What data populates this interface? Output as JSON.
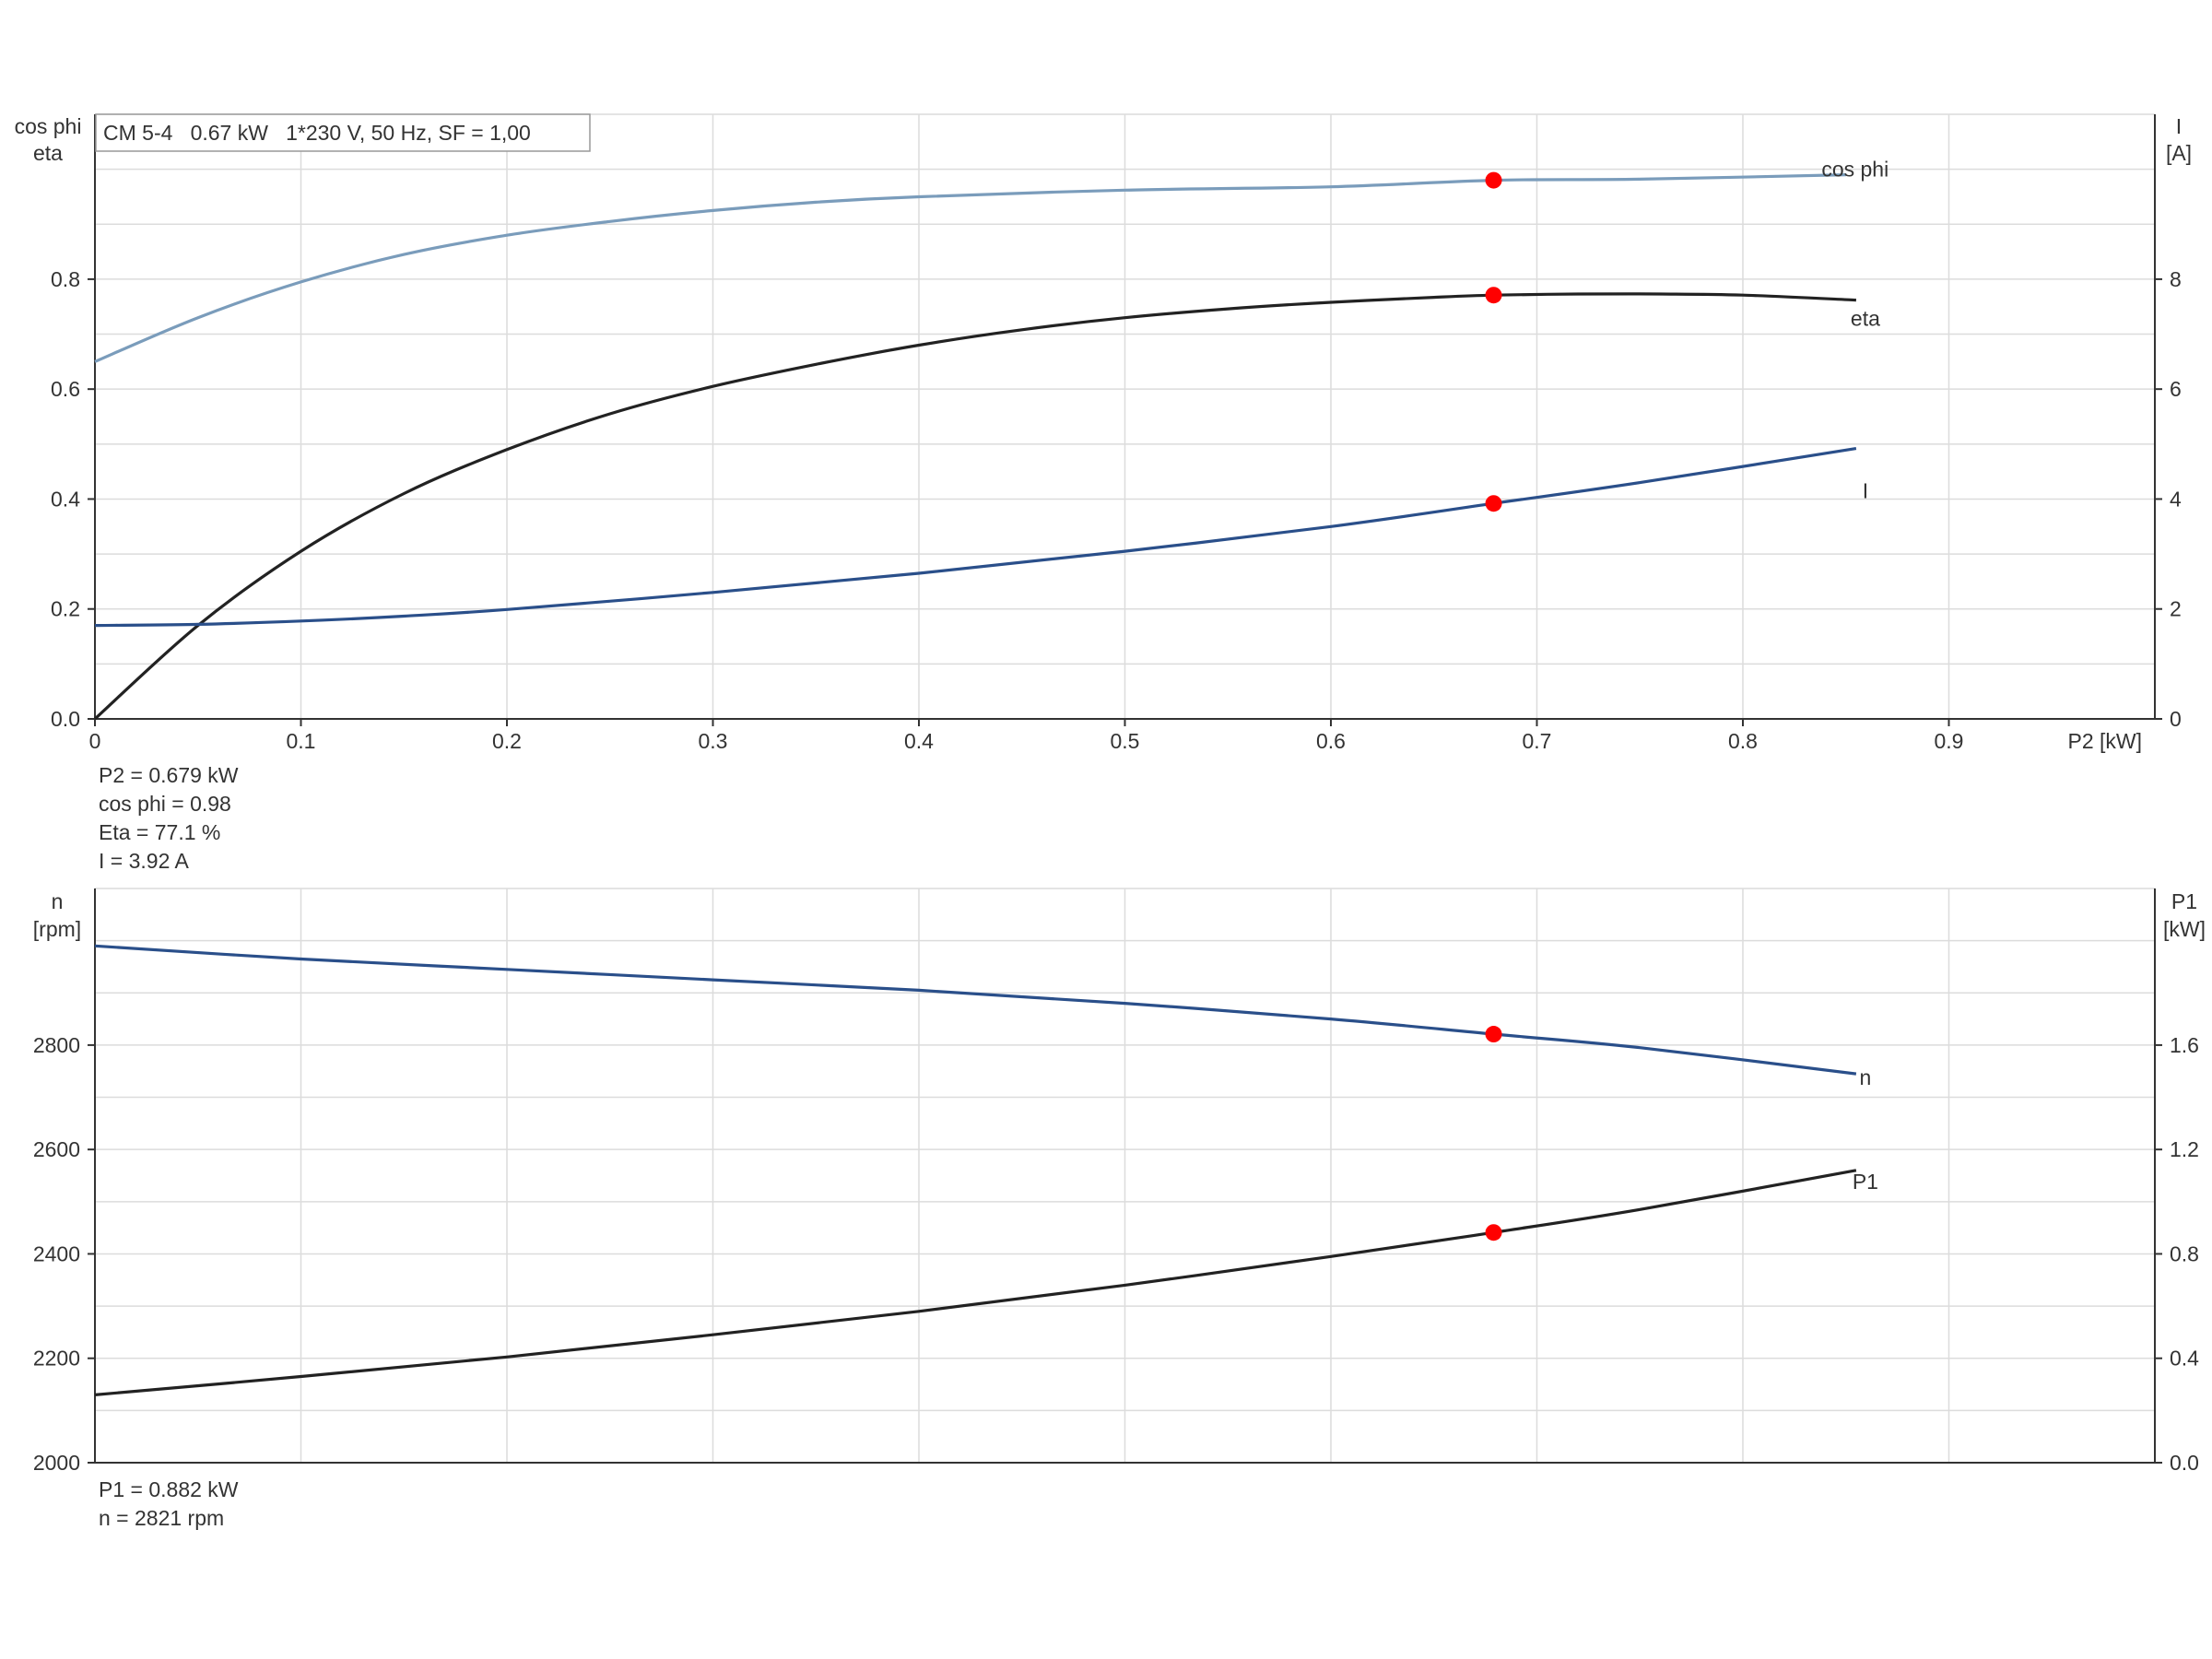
{
  "chart_data": [
    {
      "type": "line",
      "title": "CM 5-4   0.67 kW   1*230 V, 50 Hz, SF = 1,00",
      "xlabel": "P2 [kW]",
      "x_ticks": [
        "0",
        "0.1",
        "0.2",
        "0.3",
        "0.4",
        "0.5",
        "0.6",
        "0.7",
        "0.8",
        "0.9"
      ],
      "xlim": [
        0,
        1.0
      ],
      "ylabel_left": [
        "cos phi",
        "eta"
      ],
      "ylabel_right": [
        "I",
        "[A]"
      ],
      "ylim_left": [
        0,
        1.1
      ],
      "ylim_right": [
        0,
        11
      ],
      "y_ticks_left": [
        "0.0",
        "0.2",
        "0.4",
        "0.6",
        "0.8"
      ],
      "y_ticks_right": [
        "0",
        "2",
        "4",
        "6",
        "8"
      ],
      "grid": true,
      "series": [
        {
          "name": "cos phi",
          "axis": "left",
          "color": "#7a9cbb",
          "x": [
            0,
            0.05,
            0.1,
            0.15,
            0.2,
            0.25,
            0.3,
            0.35,
            0.4,
            0.5,
            0.6,
            0.679,
            0.75,
            0.85
          ],
          "y": [
            0.65,
            0.73,
            0.795,
            0.845,
            0.88,
            0.905,
            0.925,
            0.94,
            0.95,
            0.962,
            0.968,
            0.98,
            0.982,
            0.99
          ]
        },
        {
          "name": "eta",
          "axis": "left",
          "color": "#222222",
          "x": [
            0,
            0.05,
            0.1,
            0.15,
            0.2,
            0.25,
            0.3,
            0.35,
            0.4,
            0.45,
            0.5,
            0.55,
            0.6,
            0.65,
            0.679,
            0.72,
            0.76,
            0.8,
            0.855
          ],
          "y": [
            0.0,
            0.17,
            0.305,
            0.41,
            0.49,
            0.555,
            0.605,
            0.645,
            0.68,
            0.708,
            0.73,
            0.746,
            0.758,
            0.767,
            0.771,
            0.773,
            0.773,
            0.771,
            0.762
          ]
        },
        {
          "name": "I",
          "axis": "right",
          "color": "#2a4f8a",
          "x": [
            0,
            0.05,
            0.1,
            0.15,
            0.2,
            0.3,
            0.4,
            0.5,
            0.6,
            0.679,
            0.75,
            0.855
          ],
          "y": [
            1.7,
            1.72,
            1.78,
            1.87,
            1.99,
            2.3,
            2.65,
            3.05,
            3.5,
            3.92,
            4.3,
            4.92
          ]
        }
      ],
      "operating_point": {
        "x": 0.679,
        "cos_phi": 0.98,
        "eta": 0.771,
        "I": 3.92,
        "color": "#ff0000"
      },
      "readouts": [
        "P2 = 0.679 kW",
        "cos phi = 0.98",
        "Eta = 77.1 %",
        "I = 3.92 A"
      ]
    },
    {
      "type": "line",
      "xlim": [
        0,
        1.0
      ],
      "ylabel_left": [
        "n",
        "[rpm]"
      ],
      "ylabel_right": [
        "P1",
        "[kW]"
      ],
      "ylim_left": [
        2000,
        3100
      ],
      "ylim_right": [
        0.0,
        2.2
      ],
      "y_ticks_left": [
        "2000",
        "2200",
        "2400",
        "2600",
        "2800"
      ],
      "y_ticks_right": [
        "0.0",
        "0.4",
        "0.8",
        "1.2",
        "1.6"
      ],
      "grid": true,
      "series": [
        {
          "name": "n",
          "axis": "left",
          "color": "#2a4f8a",
          "x": [
            0,
            0.1,
            0.2,
            0.3,
            0.4,
            0.5,
            0.6,
            0.679,
            0.75,
            0.855
          ],
          "y": [
            2990,
            2965,
            2945,
            2925,
            2905,
            2880,
            2850,
            2821,
            2795,
            2745
          ]
        },
        {
          "name": "P1",
          "axis": "right",
          "color": "#222222",
          "x": [
            0,
            0.1,
            0.2,
            0.3,
            0.4,
            0.5,
            0.6,
            0.679,
            0.75,
            0.855
          ],
          "y": [
            0.26,
            0.33,
            0.405,
            0.49,
            0.58,
            0.68,
            0.79,
            0.882,
            0.97,
            1.12
          ]
        }
      ],
      "operating_point": {
        "x": 0.679,
        "n": 2821,
        "P1": 0.882,
        "color": "#ff0000"
      },
      "readouts": [
        "P1 = 0.882 kW",
        "n = 2821 rpm"
      ]
    }
  ]
}
